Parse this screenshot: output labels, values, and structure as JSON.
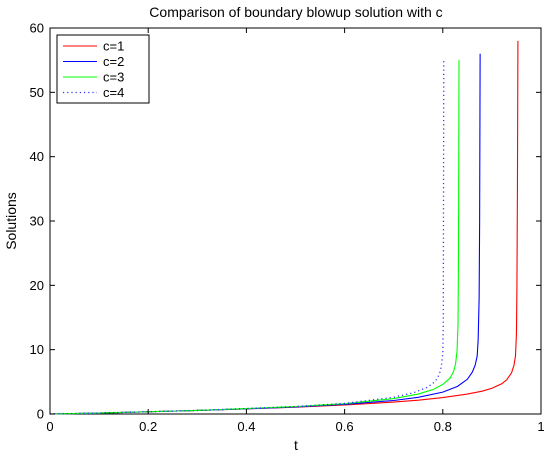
{
  "chart_data": {
    "type": "line",
    "title": "Comparison of boundary blowup solution with c",
    "xlabel": "t",
    "ylabel": "Solutions",
    "xlim": [
      0,
      1
    ],
    "ylim": [
      0,
      60
    ],
    "xticks": [
      0,
      0.2,
      0.4,
      0.6,
      0.8,
      1
    ],
    "xtick_labels": [
      "0",
      "0.2",
      "0.4",
      "0.6",
      "0.8",
      "1"
    ],
    "yticks": [
      0,
      10,
      20,
      30,
      40,
      50,
      60
    ],
    "ytick_labels": [
      "0",
      "10",
      "20",
      "30",
      "40",
      "50",
      "60"
    ],
    "grid": false,
    "legend_position": "top-left",
    "series": [
      {
        "name": "c=1",
        "color": "#ff0000",
        "style": "solid",
        "x": [
          0,
          0.1,
          0.2,
          0.3,
          0.4,
          0.5,
          0.6,
          0.7,
          0.75,
          0.8,
          0.85,
          0.88,
          0.9,
          0.92,
          0.93,
          0.94,
          0.945,
          0.948,
          0.95,
          0.951,
          0.952,
          0.953
        ],
        "y": [
          0,
          0.15,
          0.35,
          0.55,
          0.8,
          1.05,
          1.4,
          1.85,
          2.15,
          2.55,
          3.1,
          3.55,
          4.0,
          4.7,
          5.3,
          6.4,
          7.6,
          9.0,
          12.5,
          20,
          35,
          58
        ]
      },
      {
        "name": "c=2",
        "color": "#0000ff",
        "style": "solid",
        "x": [
          0,
          0.1,
          0.2,
          0.3,
          0.4,
          0.5,
          0.6,
          0.7,
          0.75,
          0.8,
          0.83,
          0.85,
          0.86,
          0.866,
          0.87,
          0.872,
          0.874,
          0.875,
          0.876
        ],
        "y": [
          0,
          0.15,
          0.35,
          0.55,
          0.8,
          1.1,
          1.5,
          2.1,
          2.6,
          3.4,
          4.3,
          5.4,
          6.5,
          7.6,
          9.0,
          11.5,
          18,
          30,
          56
        ]
      },
      {
        "name": "c=3",
        "color": "#00ff00",
        "style": "solid",
        "x": [
          0,
          0.1,
          0.2,
          0.3,
          0.4,
          0.5,
          0.6,
          0.7,
          0.75,
          0.78,
          0.8,
          0.815,
          0.822,
          0.826,
          0.829,
          0.831,
          0.832,
          0.833
        ],
        "y": [
          0,
          0.15,
          0.35,
          0.55,
          0.85,
          1.15,
          1.6,
          2.4,
          3.1,
          3.8,
          4.6,
          5.6,
          6.6,
          7.8,
          9.8,
          14,
          25,
          55
        ]
      },
      {
        "name": "c=4",
        "color": "#3333ff",
        "style": "dotted",
        "x": [
          0,
          0.1,
          0.2,
          0.3,
          0.4,
          0.5,
          0.6,
          0.7,
          0.74,
          0.77,
          0.785,
          0.793,
          0.797,
          0.8,
          0.801,
          0.802
        ],
        "y": [
          0,
          0.15,
          0.35,
          0.55,
          0.85,
          1.15,
          1.65,
          2.6,
          3.3,
          4.2,
          5.1,
          6.2,
          7.4,
          9.5,
          14,
          55
        ]
      }
    ]
  }
}
